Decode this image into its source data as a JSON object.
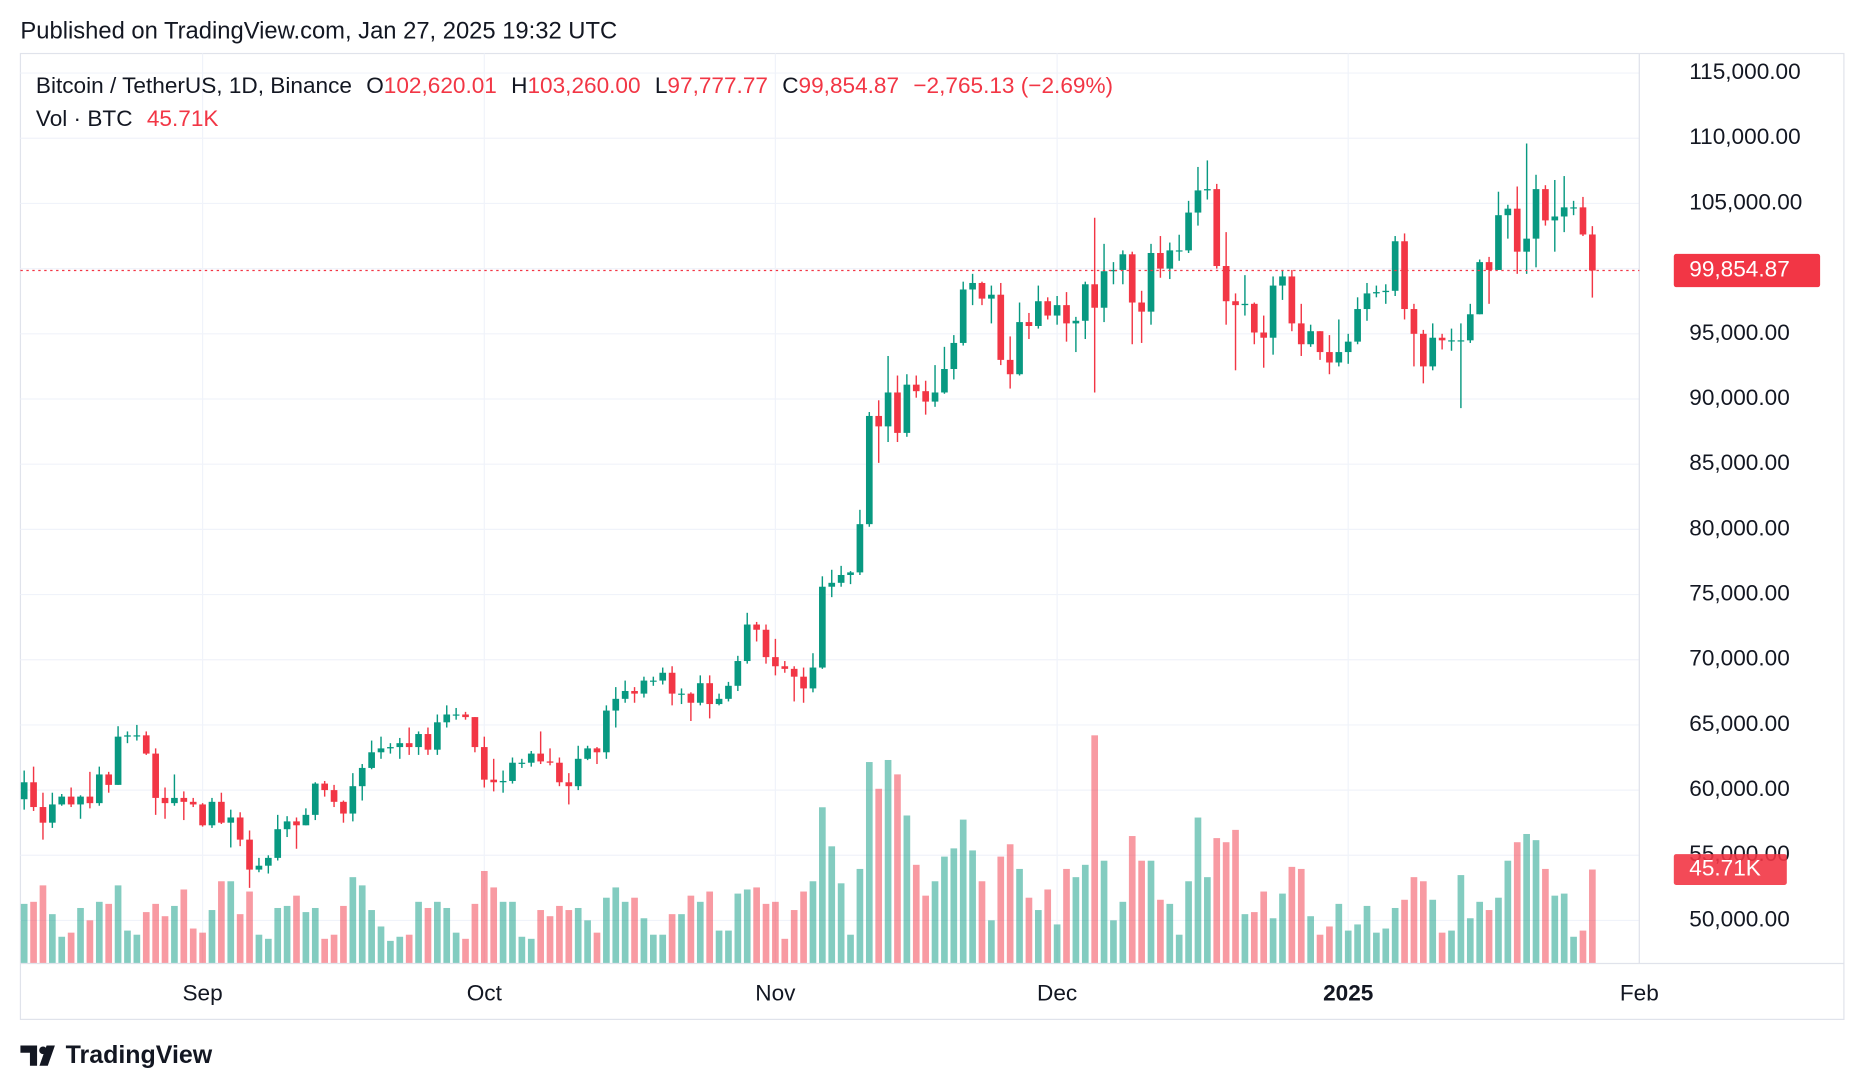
{
  "header": {
    "published": "Published on TradingView.com, Jan 27, 2025 19:32 UTC"
  },
  "footer": {
    "brand": "TradingView"
  },
  "chart_data": {
    "type": "candlestick",
    "legend": {
      "symbol": "Bitcoin / TetherUS, 1D, Binance",
      "fields": [
        {
          "key": "O",
          "label": "102,620.01"
        },
        {
          "key": "H",
          "label": "103,260.00"
        },
        {
          "key": "L",
          "label": "97,777.77"
        },
        {
          "key": "C",
          "label": "99,854.87"
        }
      ],
      "change": "−2,765.13 (−2.69%)"
    },
    "volume_title": "Vol · BTC",
    "last_price": {
      "value": 99854.87,
      "label": "99,854.87"
    },
    "last_volume": {
      "value": 45710,
      "label": "45.71K"
    },
    "up_color": "#089981",
    "down_color": "#f23645",
    "xlim": [
      -0.4,
      172
    ],
    "xticks": [
      {
        "value": 19,
        "label": "Sep"
      },
      {
        "value": 49,
        "label": "Oct"
      },
      {
        "value": 80,
        "label": "Nov"
      },
      {
        "value": 110,
        "label": "Dec"
      },
      {
        "value": 141,
        "label": "2025"
      },
      {
        "value": 172,
        "label": "Feb"
      }
    ],
    "ylim": [
      46700,
      116500
    ],
    "yticks": [
      {
        "value": 50000,
        "label": "50,000.00"
      },
      {
        "value": 55000,
        "label": "55,000.00"
      },
      {
        "value": 60000,
        "label": "60,000.00"
      },
      {
        "value": 65000,
        "label": "65,000.00"
      },
      {
        "value": 70000,
        "label": "70,000.00"
      },
      {
        "value": 75000,
        "label": "75,000.00"
      },
      {
        "value": 80000,
        "label": "80,000.00"
      },
      {
        "value": 85000,
        "label": "85,000.00"
      },
      {
        "value": 90000,
        "label": "90,000.00"
      },
      {
        "value": 95000,
        "label": "95,000.00"
      },
      {
        "value": 100000,
        "label": "100,000.00"
      },
      {
        "value": 105000,
        "label": "105,000.00"
      },
      {
        "value": 110000,
        "label": "110,000.00"
      },
      {
        "value": 115000,
        "label": "115,000.00"
      }
    ],
    "vlim": [
      0,
      125000
    ],
    "grid": true,
    "open": [
      59300,
      60600,
      58700,
      57500,
      58900,
      59500,
      58900,
      59500,
      59000,
      61200,
      60400,
      64100,
      64200,
      64200,
      62800,
      59400,
      59000,
      59400,
      59100,
      58900,
      57300,
      59100,
      57500,
      57900,
      56200,
      53900,
      54200,
      54800,
      57000,
      57600,
      57300,
      58100,
      60500,
      60000,
      59100,
      58200,
      60300,
      61700,
      62900,
      63200,
      63300,
      63600,
      63300,
      64300,
      63100,
      65200,
      65800,
      65800,
      65600,
      63300,
      60800,
      60600,
      60700,
      62100,
      62100,
      62800,
      62200,
      62100,
      60600,
      60300,
      62400,
      63200,
      62900,
      66100,
      67000,
      67600,
      67400,
      68400,
      68400,
      69000,
      67400,
      67400,
      66700,
      68200,
      66600,
      67000,
      68000,
      69900,
      72700,
      72300,
      70200,
      69500,
      69300,
      68700,
      67800,
      69400,
      75600,
      75900,
      76500,
      76700,
      80400,
      88700,
      87900,
      90500,
      87400,
      91100,
      90600,
      89800,
      90500,
      92300,
      94300,
      98400,
      98900,
      97700,
      98000,
      93000,
      91900,
      95900,
      95600,
      97500,
      96400,
      97200,
      95800,
      96000,
      98800,
      97000,
      99800,
      99900,
      101100,
      97400,
      96700,
      101200,
      100000,
      101400,
      101400,
      104300,
      106000,
      106100,
      100200,
      97500,
      97200,
      97300,
      95100,
      94700,
      98700,
      99400,
      95800,
      94200,
      95200,
      93600,
      92800,
      93600,
      94400,
      96900,
      98100,
      98200,
      98300,
      102100,
      96900,
      95000,
      92500,
      94700,
      94500,
      94500,
      94500,
      96500,
      100500,
      99900,
      104100,
      104600,
      101300,
      102300,
      106100,
      103700,
      104000,
      104700,
      104700,
      102620.01
    ],
    "high": [
      61500,
      61800,
      59800,
      59800,
      59700,
      60200,
      59600,
      61400,
      61800,
      61400,
      64900,
      64500,
      65000,
      64500,
      63200,
      60200,
      61200,
      59900,
      59400,
      59000,
      59400,
      59800,
      58500,
      58300,
      56900,
      54800,
      55000,
      58100,
      58000,
      57900,
      58600,
      60600,
      60700,
      60400,
      59200,
      61300,
      62000,
      63800,
      64100,
      63600,
      64000,
      64800,
      64500,
      64800,
      65800,
      66500,
      66300,
      66000,
      65600,
      64100,
      62400,
      61500,
      62500,
      62400,
      63000,
      64500,
      63200,
      62500,
      61300,
      63400,
      63400,
      63300,
      66500,
      67900,
      68400,
      67900,
      68700,
      68700,
      69400,
      69500,
      67800,
      67500,
      68800,
      68800,
      67400,
      68300,
      70300,
      73600,
      72900,
      72700,
      71600,
      69900,
      69500,
      69400,
      70500,
      76400,
      76900,
      77200,
      76800,
      81500,
      89000,
      89900,
      93300,
      91800,
      91900,
      91800,
      91400,
      92600,
      94000,
      94900,
      99000,
      99600,
      99000,
      98700,
      98900,
      94800,
      97400,
      96600,
      98700,
      97800,
      97900,
      98200,
      96300,
      99000,
      103900,
      101900,
      100500,
      101400,
      101300,
      98300,
      101900,
      102500,
      102000,
      102600,
      105200,
      107800,
      108300,
      106500,
      102800,
      98100,
      99500,
      97400,
      96400,
      99400,
      99900,
      99900,
      97300,
      95700,
      95200,
      94900,
      96100,
      95000,
      97800,
      98900,
      98700,
      98800,
      102500,
      102700,
      97300,
      95300,
      95800,
      95000,
      95400,
      95800,
      97300,
      100700,
      100900,
      105900,
      104900,
      106300,
      109600,
      107200,
      106400,
      106800,
      107100,
      105200,
      105500,
      103260
    ],
    "low": [
      58500,
      58400,
      56200,
      57100,
      58800,
      58700,
      57800,
      58600,
      58800,
      59800,
      60400,
      63600,
      63800,
      62700,
      58100,
      57800,
      58800,
      57700,
      58700,
      57200,
      57100,
      57400,
      55600,
      55700,
      52500,
      53700,
      53600,
      54600,
      56400,
      55500,
      57300,
      57700,
      59500,
      58700,
      57500,
      57600,
      59200,
      61600,
      62400,
      62800,
      62400,
      62700,
      62700,
      62700,
      62700,
      64800,
      65400,
      65400,
      62900,
      60200,
      59900,
      59800,
      60500,
      61700,
      61800,
      62000,
      61900,
      60300,
      58900,
      60000,
      62300,
      62000,
      62400,
      64800,
      66700,
      66700,
      67100,
      68000,
      68100,
      66500,
      66600,
      65300,
      66500,
      65500,
      66500,
      66800,
      67600,
      69700,
      71400,
      69700,
      68800,
      69000,
      66800,
      66700,
      67500,
      69300,
      74800,
      75600,
      75800,
      76500,
      80200,
      85100,
      86700,
      86700,
      87100,
      90100,
      88800,
      89400,
      90400,
      91500,
      94100,
      97200,
      97200,
      95800,
      92600,
      90800,
      91800,
      94600,
      95400,
      96100,
      95700,
      94400,
      93600,
      94600,
      90500,
      95900,
      98800,
      98800,
      94200,
      94300,
      95700,
      99300,
      99200,
      100600,
      101200,
      103300,
      105300,
      100000,
      95700,
      92200,
      96400,
      94200,
      92400,
      93400,
      97600,
      95200,
      93300,
      94000,
      93000,
      91900,
      92500,
      92700,
      94200,
      96000,
      97800,
      97300,
      97900,
      96100,
      92500,
      91200,
      92200,
      93800,
      93700,
      89300,
      94300,
      96500,
      97300,
      99900,
      102300,
      99600,
      99600,
      100100,
      103300,
      101300,
      102800,
      104100,
      102500,
      97777.77
    ],
    "close": [
      60600,
      58700,
      57500,
      58900,
      59500,
      58900,
      59500,
      59000,
      61200,
      60400,
      64100,
      64200,
      64200,
      62800,
      59400,
      59000,
      59400,
      59100,
      58900,
      57300,
      59100,
      57500,
      57900,
      56200,
      53900,
      54200,
      54800,
      57000,
      57600,
      57300,
      58100,
      60500,
      60000,
      59100,
      58200,
      60300,
      61700,
      62900,
      63200,
      63300,
      63600,
      63300,
      64300,
      63100,
      65200,
      65800,
      65800,
      65600,
      63300,
      60800,
      60600,
      60700,
      62100,
      62100,
      62800,
      62200,
      62100,
      60600,
      60300,
      62400,
      63200,
      62900,
      66100,
      67000,
      67600,
      67400,
      68400,
      68400,
      69000,
      67400,
      67400,
      66700,
      68200,
      66600,
      67000,
      68000,
      69900,
      72700,
      72300,
      70200,
      69500,
      69300,
      68700,
      67800,
      69400,
      75600,
      75900,
      76500,
      76700,
      80400,
      88700,
      87900,
      90500,
      87400,
      91100,
      90600,
      89800,
      90500,
      92300,
      94300,
      98400,
      98900,
      97700,
      98000,
      93000,
      91900,
      95900,
      95600,
      97500,
      96400,
      97200,
      95800,
      96000,
      98800,
      97000,
      99800,
      99900,
      101100,
      97400,
      96700,
      101200,
      100000,
      101400,
      101400,
      104300,
      106000,
      106100,
      100200,
      97500,
      97200,
      97300,
      95100,
      94700,
      98700,
      99400,
      95800,
      94200,
      95200,
      93600,
      92800,
      93600,
      94400,
      96900,
      98100,
      98200,
      98300,
      102100,
      96900,
      95000,
      92500,
      94700,
      94500,
      94500,
      94500,
      96500,
      100500,
      99900,
      104100,
      104600,
      101300,
      102300,
      106100,
      103700,
      104000,
      104700,
      104700,
      102620.01,
      99854.87
    ],
    "volume": [
      29000,
      30000,
      38000,
      24000,
      13000,
      15000,
      27000,
      21000,
      30000,
      29000,
      38000,
      16000,
      14000,
      25000,
      29000,
      23000,
      28000,
      36000,
      17000,
      15000,
      26000,
      40000,
      40000,
      24000,
      35000,
      14000,
      12000,
      27000,
      28000,
      33000,
      25000,
      27000,
      12000,
      14000,
      28000,
      42000,
      38000,
      26000,
      18000,
      11000,
      13000,
      14000,
      30000,
      27000,
      30000,
      27000,
      15000,
      12000,
      29000,
      45000,
      37000,
      30000,
      30000,
      13000,
      12000,
      26000,
      23000,
      28000,
      26000,
      27000,
      21000,
      15000,
      32000,
      37000,
      30000,
      32000,
      22000,
      14000,
      14000,
      24000,
      24000,
      33000,
      30000,
      35000,
      16000,
      16000,
      34000,
      36000,
      37000,
      29000,
      30000,
      12000,
      26000,
      35000,
      40000,
      76000,
      57000,
      39000,
      14000,
      46000,
      98000,
      85000,
      99000,
      92000,
      72000,
      48000,
      33000,
      40000,
      52000,
      56000,
      70000,
      55000,
      40000,
      21000,
      52000,
      58000,
      46000,
      32000,
      26000,
      36000,
      19000,
      46000,
      42000,
      48000,
      111000,
      50000,
      21000,
      30000,
      62000,
      50000,
      50000,
      31000,
      29000,
      14000,
      40000,
      71000,
      42000,
      61000,
      59000,
      65000,
      24000,
      25000,
      35000,
      22000,
      34000,
      47000,
      46000,
      23000,
      14000,
      18000,
      29000,
      16000,
      19000,
      28000,
      15000,
      17000,
      27000,
      31000,
      42000,
      40000,
      31000,
      15000,
      16000,
      43000,
      22000,
      30000,
      26000,
      32000,
      50000,
      59000,
      63000,
      60000,
      46000,
      33000,
      34000,
      13000,
      16000,
      45710
    ]
  }
}
